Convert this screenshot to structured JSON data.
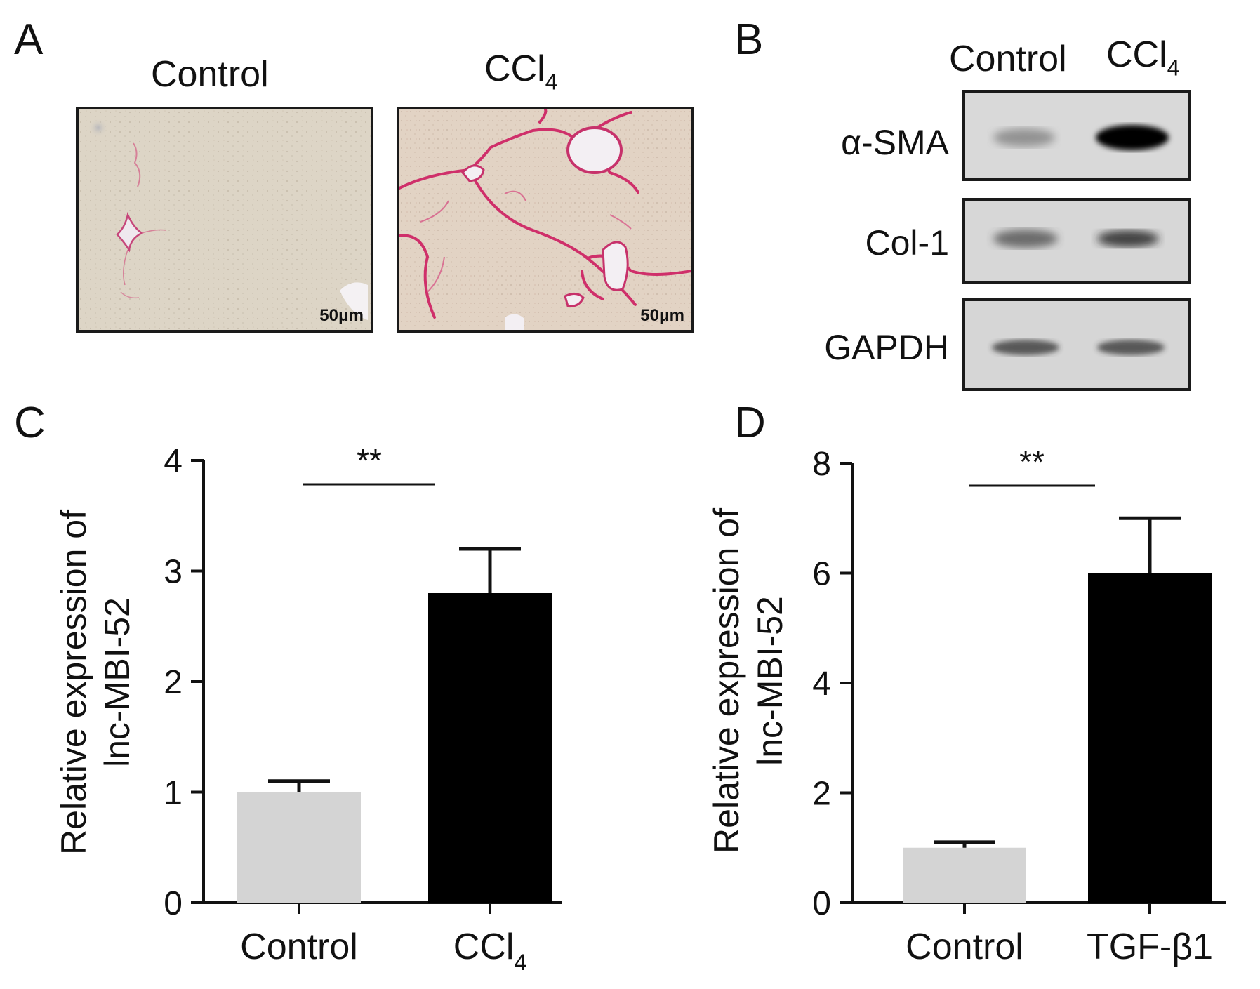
{
  "panels": {
    "a": {
      "letter": "A",
      "control_label": "Control",
      "treat_label_main": "CCl",
      "treat_label_sub": "4",
      "scale_bar": "50μm"
    },
    "b": {
      "letter": "B",
      "col_control": "Control",
      "col_treat_main": "CCl",
      "col_treat_sub": "4",
      "bands": [
        {
          "label": "α-SMA",
          "control_intensity": 0.35,
          "treat_intensity": 1.0
        },
        {
          "label": "Col-1",
          "control_intensity": 0.55,
          "treat_intensity": 0.7
        },
        {
          "label": "GAPDH",
          "control_intensity": 0.65,
          "treat_intensity": 0.65
        }
      ]
    },
    "c": {
      "letter": "C"
    },
    "d": {
      "letter": "D"
    }
  },
  "chart_data": [
    {
      "type": "bar",
      "panel": "C",
      "categories": [
        "Control",
        "CCl4"
      ],
      "category_labels": [
        {
          "main": "Control",
          "sub": ""
        },
        {
          "main": "CCl",
          "sub": "4"
        }
      ],
      "values": [
        1.0,
        2.8
      ],
      "errors": [
        0.1,
        0.4
      ],
      "colors": [
        "#d4d4d4",
        "#000000"
      ],
      "ylabel_line1": "Relative expression of",
      "ylabel_line2": "lnc-MBI-52",
      "ylim": [
        0,
        4
      ],
      "yticks": [
        0,
        1,
        2,
        3,
        4
      ],
      "significance": "**"
    },
    {
      "type": "bar",
      "panel": "D",
      "categories": [
        "Control",
        "TGF-β1"
      ],
      "category_labels": [
        {
          "main": "Control",
          "sub": ""
        },
        {
          "main": "TGF-β1",
          "sub": ""
        }
      ],
      "values": [
        1.0,
        6.0
      ],
      "errors": [
        0.1,
        1.0
      ],
      "colors": [
        "#d4d4d4",
        "#000000"
      ],
      "ylabel_line1": "Relative expression of",
      "ylabel_line2": "lnc-MBI-52",
      "ylim": [
        0,
        8
      ],
      "yticks": [
        0,
        2,
        4,
        6,
        8
      ],
      "significance": "**"
    }
  ]
}
